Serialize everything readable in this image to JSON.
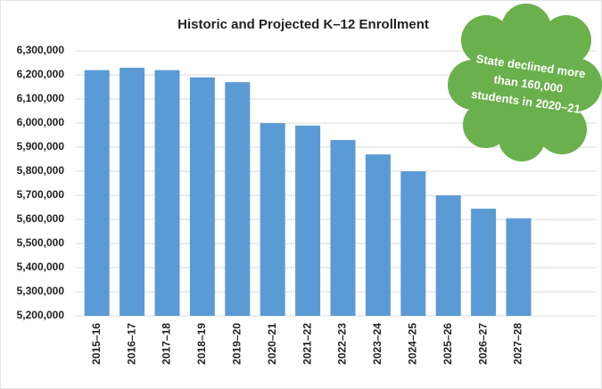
{
  "chart_data": {
    "type": "bar",
    "title": "Historic and Projected K–12 Enrollment",
    "categories": [
      "2015–16",
      "2016–17",
      "2017–18",
      "2018–19",
      "2019–20",
      "2020–21",
      "2021–22",
      "2022–23",
      "2023–24",
      "2024–25",
      "2025–26",
      "2026–27",
      "2027–28"
    ],
    "values": [
      6220000,
      6230000,
      6220000,
      6190000,
      6170000,
      6000000,
      5990000,
      5930000,
      5870000,
      5800000,
      5700000,
      5645000,
      5605000
    ],
    "color": "#5b9bd5",
    "ylim": [
      5200000,
      6300000
    ],
    "yticks": [
      {
        "value": 5200000,
        "label": "5,200,000"
      },
      {
        "value": 5300000,
        "label": "5,300,000"
      },
      {
        "value": 5400000,
        "label": "5,400,000"
      },
      {
        "value": 5500000,
        "label": "5,500,000"
      },
      {
        "value": 5600000,
        "label": "5,600,000"
      },
      {
        "value": 5700000,
        "label": "5,700,000"
      },
      {
        "value": 5800000,
        "label": "5,800,000"
      },
      {
        "value": 5900000,
        "label": "5,900,000"
      },
      {
        "value": 6000000,
        "label": "6,000,000"
      },
      {
        "value": 6100000,
        "label": "6,100,000"
      },
      {
        "value": 6200000,
        "label": "6,200,000"
      },
      {
        "value": 6300000,
        "label": "6,300,000"
      }
    ],
    "grid": true,
    "annotation": [
      "State declined more",
      "than 160,000",
      "students in 2020–21"
    ]
  }
}
